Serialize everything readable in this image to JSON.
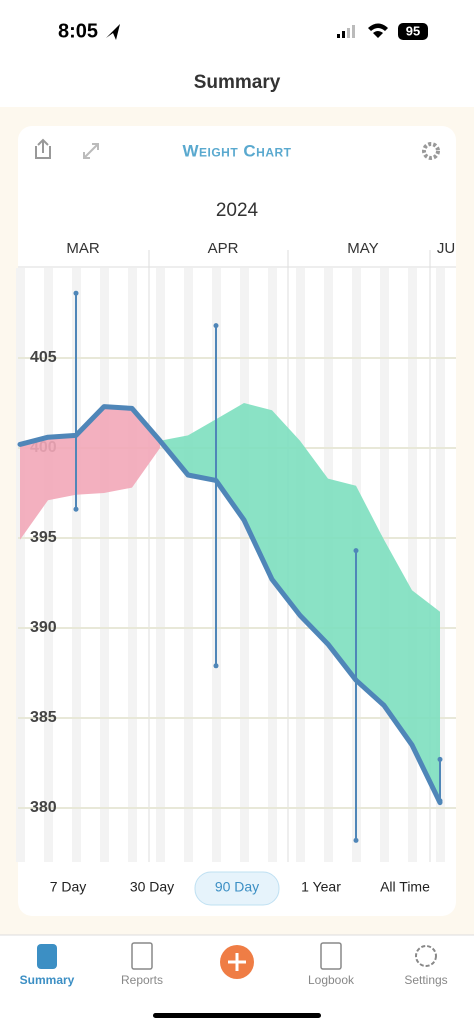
{
  "status_bar": {
    "time": "8:05",
    "battery": "95"
  },
  "header": {
    "title": "Summary"
  },
  "chart_data": {
    "type": "line",
    "title": "Weight Chart",
    "year": "2024",
    "categories": [
      null,
      null,
      "MAR",
      null,
      null,
      null,
      null,
      "APR",
      null,
      null,
      null,
      null,
      "MAY",
      null,
      null,
      "JU"
    ],
    "ylim": [
      377,
      410
    ],
    "yticks": [
      380,
      385,
      390,
      395,
      400,
      405
    ],
    "grid": true,
    "series": [
      {
        "color": "#4f86b8",
        "values": [
          400.2,
          400.6,
          400.7,
          402.3,
          402.2,
          400.4,
          398.5,
          398.2,
          396.0,
          392.7,
          390.7,
          389.1,
          387.1,
          385.7,
          383.5,
          380.3
        ]
      }
    ],
    "areas": [
      {
        "color": "#f2a7b8",
        "upper": [
          400.2,
          400.6,
          400.7,
          402.3,
          402.2,
          400.4,
          null,
          null,
          null,
          null,
          null,
          null,
          null,
          null,
          null,
          null
        ],
        "lower": [
          394.9,
          397.1,
          397.4,
          397.5,
          397.8,
          400.0,
          null,
          null,
          null,
          null,
          null,
          null,
          null,
          null,
          null,
          null
        ]
      },
      {
        "color": "#7ddfbf",
        "upper": [
          null,
          null,
          null,
          null,
          null,
          400.4,
          400.7,
          401.6,
          402.5,
          402.1,
          400.4,
          398.3,
          397.9,
          394.9,
          392.1,
          390.9
        ],
        "lower": [
          null,
          null,
          null,
          null,
          null,
          400.4,
          398.5,
          398.2,
          396.0,
          392.7,
          390.7,
          389.1,
          387.1,
          385.7,
          383.5,
          380.3
        ]
      }
    ],
    "ranges": {
      "color": "#4f86b8",
      "high": [
        null,
        null,
        408.6,
        null,
        null,
        null,
        null,
        406.8,
        null,
        null,
        null,
        null,
        394.3,
        null,
        null,
        382.7
      ],
      "low": [
        null,
        null,
        396.6,
        null,
        null,
        null,
        null,
        387.9,
        null,
        null,
        null,
        null,
        378.2,
        null,
        null,
        380.4
      ]
    }
  },
  "range_buttons": {
    "options": [
      "7 Day",
      "30 Day",
      "90 Day",
      "1 Year",
      "All Time"
    ],
    "selected": 2
  },
  "tab_bar": {
    "tabs": [
      "Summary",
      "Reports",
      "Logbook",
      "Settings"
    ],
    "selected": 0
  }
}
